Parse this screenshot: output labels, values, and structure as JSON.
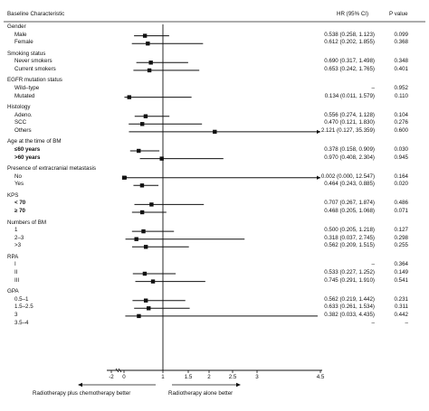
{
  "header": {
    "characteristic": "Baseline Characteristic",
    "hr": "HR (95% CI)",
    "p": "P value"
  },
  "chart_data": {
    "type": "forest",
    "xaxis": {
      "ticks": [
        "-2",
        "0",
        "1",
        "1.5",
        "2",
        "2.5",
        "3",
        "4.5"
      ],
      "ref_line": 1
    },
    "direction_labels": {
      "left": "Radiotherapy plus chemotherapy better",
      "right": "Radiotherapy alone better"
    },
    "groups": [
      {
        "label": "Gender",
        "rows": [
          {
            "label": "Male",
            "hr": 0.538,
            "lo": 0.258,
            "hi": 1.123,
            "hr_text": "0.538 (0.258, 1.123)",
            "p": "0.099"
          },
          {
            "label": "Female",
            "hr": 0.612,
            "lo": 0.202,
            "hi": 1.855,
            "hr_text": "0.612 (0.202, 1.855)",
            "p": "0.368"
          }
        ]
      },
      {
        "label": "Smoking status",
        "rows": [
          {
            "label": "Never smokers",
            "hr": 0.69,
            "lo": 0.317,
            "hi": 1.498,
            "hr_text": "0.690 (0.317, 1.498)",
            "p": "0.348"
          },
          {
            "label": "Current smokers",
            "hr": 0.653,
            "lo": 0.242,
            "hi": 1.765,
            "hr_text": "0.653 (0.242, 1.765)",
            "p": "0.401"
          }
        ]
      },
      {
        "label": "EGFR mutation status",
        "rows": [
          {
            "label": "Wild–type",
            "hr": null,
            "hr_text": "–",
            "p": "0.952"
          },
          {
            "label": "Mutated",
            "hr": 0.134,
            "lo": 0.011,
            "hi": 1.579,
            "hr_text": "0.134 (0.011, 1.579)",
            "p": "0.110"
          }
        ]
      },
      {
        "label": "Histology",
        "rows": [
          {
            "label": "Adeno.",
            "hr": 0.556,
            "lo": 0.274,
            "hi": 1.128,
            "hr_text": "0.556 (0.274, 1.128)",
            "p": "0.104"
          },
          {
            "label": "SCC",
            "hr": 0.47,
            "lo": 0.121,
            "hi": 1.83,
            "hr_text": "0.470 (0.121, 1.830)",
            "p": "0.276"
          },
          {
            "label": "Others",
            "hr": 2.121,
            "lo": 0.127,
            "hi": 35.359,
            "hr_text": "2.121 (0.127, 35.359)",
            "p": "0.600",
            "arrow_right": true
          }
        ]
      },
      {
        "label": "Age at the time of BM",
        "rows": [
          {
            "label": "≤60 years",
            "bold": true,
            "hr": 0.378,
            "lo": 0.158,
            "hi": 0.909,
            "hr_text": "0.378 (0.158, 0.909)",
            "p": "0.030"
          },
          {
            "label": ">60 years",
            "bold": true,
            "hr": 0.97,
            "lo": 0.408,
            "hi": 2.304,
            "hr_text": "0.970 (0.408, 2.304)",
            "p": "0.945"
          }
        ]
      },
      {
        "label": "Presence of extracranial metastasis",
        "rows": [
          {
            "label": "No",
            "hr": 0.002,
            "lo": 0.0,
            "hi": 12.547,
            "hr_text": "0.002 (0.000, 12.547)",
            "p": "0.164",
            "arrow_both": true
          },
          {
            "label": "Yes",
            "hr": 0.464,
            "lo": 0.243,
            "hi": 0.885,
            "hr_text": "0.464 (0.243, 0.885)",
            "p": "0.020"
          }
        ]
      },
      {
        "label": "KPS",
        "rows": [
          {
            "label": "< 70",
            "bold": true,
            "hr": 0.707,
            "lo": 0.267,
            "hi": 1.874,
            "hr_text": "0.707 (0.267, 1.874)",
            "p": "0.486"
          },
          {
            "label": "≥ 70",
            "bold": true,
            "hr": 0.468,
            "lo": 0.205,
            "hi": 1.068,
            "hr_text": "0.468 (0.205, 1.068)",
            "p": "0.071"
          }
        ]
      },
      {
        "label": "Numbers of BM",
        "rows": [
          {
            "label": "1",
            "hr": 0.5,
            "lo": 0.205,
            "hi": 1.218,
            "hr_text": "0.500 (0.205, 1.218)",
            "p": "0.127"
          },
          {
            "label": "2–3",
            "hr": 0.318,
            "lo": 0.037,
            "hi": 2.745,
            "hr_text": "0.318 (0.037, 2.745)",
            "p": "0.298"
          },
          {
            "label": ">3",
            "hr": 0.562,
            "lo": 0.209,
            "hi": 1.515,
            "hr_text": "0.562 (0.209, 1.515)",
            "p": "0.255"
          }
        ]
      },
      {
        "label": "RPA",
        "rows": [
          {
            "label": "I",
            "hr": null,
            "hr_text": "–",
            "p": "0.364"
          },
          {
            "label": "II",
            "hr": 0.533,
            "lo": 0.227,
            "hi": 1.252,
            "hr_text": "0.533 (0.227, 1.252)",
            "p": "0.149"
          },
          {
            "label": "III",
            "hr": 0.745,
            "lo": 0.291,
            "hi": 1.91,
            "hr_text": "0.745 (0.291, 1.910)",
            "p": "0.541"
          }
        ]
      },
      {
        "label": "GPA",
        "rows": [
          {
            "label": "0.5–1",
            "hr": 0.562,
            "lo": 0.219,
            "hi": 1.442,
            "hr_text": "0.562 (0.219, 1.442)",
            "p": "0.231"
          },
          {
            "label": "1.5–2.5",
            "hr": 0.633,
            "lo": 0.261,
            "hi": 1.534,
            "hr_text": "0.633 (0.261, 1.534)",
            "p": "0.311"
          },
          {
            "label": "3",
            "hr": 0.382,
            "lo": 0.033,
            "hi": 4.435,
            "hr_text": "0.382 (0.033, 4.435)",
            "p": "0.442"
          },
          {
            "label": "3.5–4",
            "hr": null,
            "hr_text": "–",
            "p": "–"
          }
        ]
      }
    ]
  }
}
